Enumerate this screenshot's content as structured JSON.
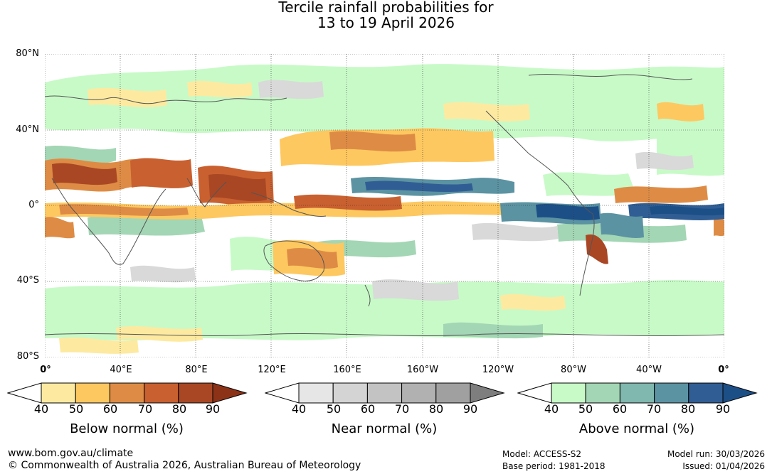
{
  "title": {
    "line1": "Tercile rainfall probabilities for",
    "line2": "13 to 19 April 2026"
  },
  "map": {
    "lat_labels": [
      "80°N",
      "40°N",
      "0°",
      "40°S",
      "80°S"
    ],
    "lon_labels": [
      "0°",
      "40°E",
      "80°E",
      "120°E",
      "160°E",
      "160°W",
      "120°W",
      "80°W",
      "40°W",
      "0°"
    ]
  },
  "legends": [
    {
      "title": "Below normal (%)",
      "ticks": [
        "40",
        "50",
        "60",
        "70",
        "80",
        "90"
      ],
      "colors": [
        "#ffffff",
        "#fdeaa0",
        "#fec860",
        "#de8c45",
        "#c9602f",
        "#a94725",
        "#8c3217"
      ]
    },
    {
      "title": "Near normal (%)",
      "ticks": [
        "40",
        "50",
        "60",
        "70",
        "80",
        "90"
      ],
      "colors": [
        "#ffffff",
        "#e6e6e6",
        "#d4d4d4",
        "#c3c3c3",
        "#b1b1b1",
        "#a0a0a0",
        "#7e7e7e"
      ]
    },
    {
      "title": "Above normal (%)",
      "ticks": [
        "40",
        "50",
        "60",
        "70",
        "80",
        "90"
      ],
      "colors": [
        "#ffffff",
        "#c8fac8",
        "#a3d6b4",
        "#80b7ae",
        "#5b93a2",
        "#305e94",
        "#1d4f87"
      ]
    }
  ],
  "footer": {
    "website": "www.bom.gov.au/climate",
    "copyright": "© Commonwealth of Australia 2026, Australian Bureau of Meteorology",
    "model": "Model: ACCESS-S2",
    "base_period": "Base period: 1981-2018",
    "model_run": "Model run: 30/03/2026",
    "issued": "Issued: 01/04/2026"
  }
}
